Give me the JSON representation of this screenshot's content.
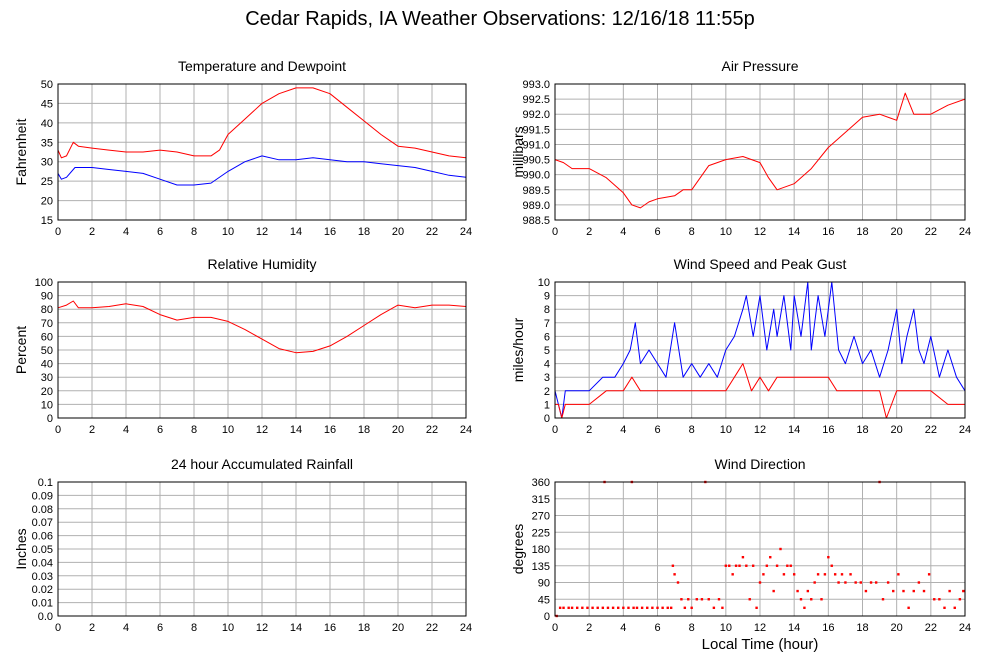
{
  "page_title": "Cedar Rapids, IA Weather Observations: 12/16/18 11:55p",
  "x_axis_label": "Local Time (hour)",
  "colors": {
    "red": "#ff0000",
    "blue": "#0000ff",
    "grid": "#b0b0b0"
  },
  "chart_data": [
    {
      "id": "temp",
      "type": "line",
      "title": "Temperature and Dewpoint",
      "ylabel": "Fahrenheit",
      "xlim": [
        0,
        24
      ],
      "ylim": [
        15,
        50
      ],
      "x_ticks": [
        0,
        2,
        4,
        6,
        8,
        10,
        12,
        14,
        16,
        18,
        20,
        22,
        24
      ],
      "y_ticks": [
        "15",
        "20",
        "25",
        "30",
        "35",
        "40",
        "45",
        "50"
      ],
      "grid": true,
      "series": [
        {
          "color": "#ff0000",
          "x": [
            0,
            0.2,
            0.5,
            0.9,
            1.2,
            2,
            3,
            4,
            5,
            6,
            7,
            8,
            9,
            9.5,
            10,
            11,
            12,
            13,
            14,
            15,
            16,
            17,
            18,
            19,
            20,
            21,
            22,
            23,
            24
          ],
          "y": [
            33,
            31,
            31.5,
            35,
            34,
            33.5,
            33,
            32.5,
            32.5,
            33,
            32.5,
            31.5,
            31.5,
            33,
            37,
            41,
            45,
            47.5,
            49,
            49,
            47.5,
            44,
            40.5,
            37,
            34,
            33.5,
            32.5,
            31.5,
            31
          ]
        },
        {
          "color": "#0000ff",
          "x": [
            0,
            0.2,
            0.5,
            1,
            2,
            3,
            4,
            5,
            6,
            7,
            8,
            9,
            10,
            11,
            12,
            13,
            14,
            15,
            16,
            17,
            18,
            19,
            20,
            21,
            22,
            23,
            24
          ],
          "y": [
            27,
            25.5,
            26,
            28.5,
            28.5,
            28,
            27.5,
            27,
            25.5,
            24,
            24,
            24.5,
            27.5,
            30,
            31.5,
            30.5,
            30.5,
            31,
            30.5,
            30,
            30,
            29.5,
            29,
            28.5,
            27.5,
            26.5,
            26
          ]
        }
      ]
    },
    {
      "id": "pressure",
      "type": "line",
      "title": "Air Pressure",
      "ylabel": "millibars",
      "xlim": [
        0,
        24
      ],
      "ylim": [
        988.5,
        993.0
      ],
      "x_ticks": [
        0,
        2,
        4,
        6,
        8,
        10,
        12,
        14,
        16,
        18,
        20,
        22,
        24
      ],
      "y_ticks": [
        "988.5",
        "989.0",
        "989.5",
        "990.0",
        "990.5",
        "991.0",
        "991.5",
        "992.0",
        "992.5",
        "993.0"
      ],
      "grid": true,
      "series": [
        {
          "color": "#ff0000",
          "x": [
            0,
            0.5,
            1,
            2,
            3,
            4,
            4.5,
            5,
            5.5,
            6,
            7,
            7.5,
            8,
            9,
            10,
            11,
            12,
            12.5,
            13,
            14,
            15,
            16,
            17,
            18,
            19,
            20,
            20.5,
            21,
            22,
            23,
            24
          ],
          "y": [
            990.5,
            990.4,
            990.2,
            990.2,
            989.9,
            989.4,
            989.0,
            988.9,
            989.1,
            989.2,
            989.3,
            989.5,
            989.5,
            990.3,
            990.5,
            990.6,
            990.4,
            989.9,
            989.5,
            989.7,
            990.2,
            990.9,
            991.4,
            991.9,
            992.0,
            991.8,
            992.7,
            992.0,
            992.0,
            992.3,
            992.5
          ]
        }
      ]
    },
    {
      "id": "rh",
      "type": "line",
      "title": "Relative Humidity",
      "ylabel": "Percent",
      "xlim": [
        0,
        24
      ],
      "ylim": [
        0,
        100
      ],
      "x_ticks": [
        0,
        2,
        4,
        6,
        8,
        10,
        12,
        14,
        16,
        18,
        20,
        22,
        24
      ],
      "y_ticks": [
        "0",
        "10",
        "20",
        "30",
        "40",
        "50",
        "60",
        "70",
        "80",
        "90",
        "100"
      ],
      "grid": true,
      "series": [
        {
          "color": "#ff0000",
          "x": [
            0,
            0.5,
            0.9,
            1.2,
            2,
            3,
            4,
            5,
            6,
            7,
            8,
            9,
            10,
            11,
            12,
            13,
            14,
            15,
            16,
            17,
            18,
            19,
            20,
            21,
            22,
            23,
            24
          ],
          "y": [
            81,
            83,
            86,
            81,
            81,
            82,
            84,
            82,
            76,
            72,
            74,
            74,
            71,
            65,
            58,
            51,
            48,
            49,
            53,
            60,
            68,
            76,
            83,
            81,
            83,
            83,
            82
          ]
        }
      ]
    },
    {
      "id": "wind",
      "type": "line",
      "title": "Wind Speed and Peak Gust",
      "ylabel": "miles/hour",
      "xlim": [
        0,
        24
      ],
      "ylim": [
        0,
        10
      ],
      "x_ticks": [
        0,
        2,
        4,
        6,
        8,
        10,
        12,
        14,
        16,
        18,
        20,
        22,
        24
      ],
      "y_ticks": [
        "0",
        "1",
        "2",
        "3",
        "4",
        "5",
        "6",
        "7",
        "8",
        "9",
        "10"
      ],
      "grid": true,
      "series": [
        {
          "color": "#0000ff",
          "x": [
            0,
            0.2,
            0.4,
            0.6,
            1,
            2,
            2.8,
            3.5,
            4,
            4.4,
            4.7,
            5,
            5.5,
            6,
            6.5,
            7,
            7.5,
            8,
            8.5,
            9,
            9.5,
            10,
            10.5,
            11,
            11.2,
            11.6,
            12,
            12.4,
            12.8,
            13,
            13.4,
            13.8,
            14,
            14.4,
            14.8,
            15,
            15.4,
            15.8,
            16.2,
            16.6,
            17,
            17.5,
            18,
            18.5,
            19,
            19.5,
            20,
            20.3,
            20.6,
            21,
            21.3,
            21.6,
            22,
            22.5,
            23,
            23.5,
            24
          ],
          "y": [
            2,
            1,
            0,
            2,
            2,
            2,
            3,
            3,
            4,
            5,
            7,
            4,
            5,
            4,
            3,
            7,
            3,
            4,
            3,
            4,
            3,
            5,
            6,
            8,
            9,
            6,
            9,
            5,
            8,
            6,
            9,
            5,
            9,
            6,
            10,
            5,
            9,
            6,
            10,
            5,
            4,
            6,
            4,
            5,
            3,
            5,
            8,
            4,
            6,
            8,
            5,
            4,
            6,
            3,
            5,
            3,
            2
          ]
        },
        {
          "color": "#ff0000",
          "x": [
            0,
            0.2,
            0.4,
            0.6,
            1,
            2,
            3,
            4,
            4.5,
            5,
            6,
            7,
            8,
            9,
            10,
            10.5,
            11,
            11.5,
            12,
            12.5,
            13,
            14,
            15,
            16,
            16.5,
            17,
            18,
            19,
            19.4,
            20,
            21,
            22,
            23,
            24
          ],
          "y": [
            1,
            1,
            0,
            1,
            1,
            1,
            2,
            2,
            3,
            2,
            2,
            2,
            2,
            2,
            2,
            3,
            4,
            2,
            3,
            2,
            3,
            3,
            3,
            3,
            2,
            2,
            2,
            2,
            0,
            2,
            2,
            2,
            1,
            1
          ]
        }
      ]
    },
    {
      "id": "rain",
      "type": "line",
      "title": "24 hour Accumulated Rainfall",
      "ylabel": "Inches",
      "xlim": [
        0,
        24
      ],
      "ylim": [
        0,
        0.1
      ],
      "x_ticks": [
        0,
        2,
        4,
        6,
        8,
        10,
        12,
        14,
        16,
        18,
        20,
        22,
        24
      ],
      "y_ticks": [
        "0.0",
        "0.01",
        "0.02",
        "0.03",
        "0.04",
        "0.05",
        "0.06",
        "0.07",
        "0.08",
        "0.09",
        "0.1"
      ],
      "grid": true,
      "series": [
        {
          "color": "#ff0000",
          "x": [
            0,
            24
          ],
          "y": [
            0,
            0
          ]
        }
      ]
    },
    {
      "id": "dir",
      "type": "scatter",
      "title": "Wind Direction",
      "ylabel": "degrees",
      "xlim": [
        0,
        24
      ],
      "ylim": [
        0,
        360
      ],
      "x_ticks": [
        0,
        2,
        4,
        6,
        8,
        10,
        12,
        14,
        16,
        18,
        20,
        22,
        24
      ],
      "y_ticks": [
        "0",
        "45",
        "90",
        "135",
        "180",
        "225",
        "270",
        "315",
        "360"
      ],
      "grid": true,
      "series": [
        {
          "color": "#ff0000",
          "x": [
            0.1,
            0.3,
            0.5,
            0.8,
            1.0,
            1.3,
            1.6,
            1.9,
            2.2,
            2.5,
            2.8,
            2.9,
            3.1,
            3.4,
            3.7,
            4.0,
            4.3,
            4.5,
            4.6,
            4.8,
            5.1,
            5.4,
            5.7,
            6.0,
            6.3,
            6.6,
            6.8,
            6.9,
            7.0,
            7.2,
            7.4,
            7.6,
            7.8,
            8.0,
            8.3,
            8.6,
            8.8,
            9.0,
            9.3,
            9.6,
            9.8,
            10.0,
            10.2,
            10.4,
            10.6,
            10.8,
            11.0,
            11.2,
            11.4,
            11.6,
            11.8,
            12.0,
            12.2,
            12.4,
            12.6,
            12.8,
            13.0,
            13.2,
            13.4,
            13.6,
            13.8,
            14.0,
            14.2,
            14.4,
            14.6,
            14.8,
            15.0,
            15.2,
            15.4,
            15.6,
            15.8,
            16.0,
            16.2,
            16.4,
            16.6,
            16.8,
            17.0,
            17.3,
            17.6,
            17.9,
            18.2,
            18.5,
            18.8,
            19.0,
            19.2,
            19.5,
            19.8,
            20.1,
            20.4,
            20.7,
            21.0,
            21.3,
            21.6,
            21.9,
            22.2,
            22.5,
            22.8,
            23.1,
            23.4,
            23.7,
            23.9
          ],
          "y": [
            0,
            22,
            22,
            22,
            22,
            22,
            22,
            22,
            22,
            22,
            22,
            360,
            22,
            22,
            22,
            22,
            22,
            360,
            22,
            22,
            22,
            22,
            22,
            22,
            22,
            22,
            22,
            135,
            112,
            90,
            45,
            22,
            45,
            22,
            45,
            45,
            360,
            45,
            22,
            45,
            22,
            135,
            135,
            112,
            135,
            135,
            158,
            135,
            45,
            135,
            22,
            90,
            112,
            135,
            158,
            67,
            135,
            180,
            112,
            135,
            135,
            112,
            67,
            45,
            22,
            67,
            45,
            90,
            112,
            45,
            112,
            158,
            135,
            112,
            90,
            112,
            90,
            112,
            90,
            90,
            67,
            90,
            90,
            360,
            45,
            90,
            67,
            112,
            67,
            22,
            67,
            90,
            67,
            112,
            45,
            45,
            22,
            67,
            22,
            45,
            67
          ]
        }
      ]
    }
  ]
}
